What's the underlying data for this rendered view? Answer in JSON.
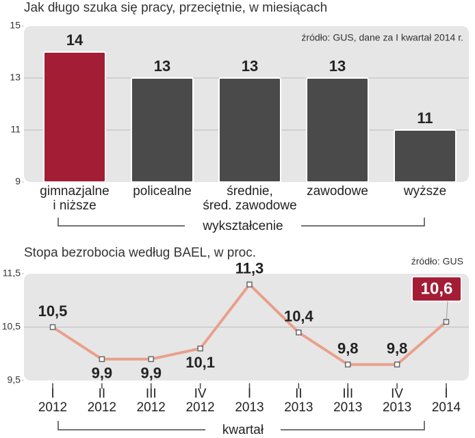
{
  "chart_data": [
    {
      "type": "bar",
      "title": "Jak długo szuka się pracy, przeciętnie, w miesiącach",
      "source": "źródło: GUS, dane za I kwartał 2014 r.",
      "categories": [
        [
          "gimnazjalne",
          "i niższe"
        ],
        [
          "policealne"
        ],
        [
          "średnie,",
          "śred. zawodowe"
        ],
        [
          "zawodowe"
        ],
        [
          "wyższe"
        ]
      ],
      "values": [
        14,
        13,
        13,
        13,
        11
      ],
      "colors": [
        "#a31d35",
        "#4a4a4a",
        "#4a4a4a",
        "#4a4a4a",
        "#4a4a4a"
      ],
      "xlabel": "wykształcenie",
      "ylim": [
        9,
        15
      ],
      "yticks": [
        9,
        11,
        13,
        15
      ],
      "grid": true
    },
    {
      "type": "line",
      "title": "Stopa bezrobocia według BAEL, w proc.",
      "source": "źródło: GUS",
      "categories": [
        [
          "I",
          "2012"
        ],
        [
          "II",
          "2012"
        ],
        [
          "III",
          "2012"
        ],
        [
          "IV",
          "2012"
        ],
        [
          "I",
          "2013"
        ],
        [
          "II",
          "2013"
        ],
        [
          "III",
          "2013"
        ],
        [
          "IV",
          "2013"
        ],
        [
          "I",
          "2014"
        ]
      ],
      "values": [
        10.5,
        9.9,
        9.9,
        10.1,
        11.3,
        10.4,
        9.8,
        9.8,
        10.6
      ],
      "value_labels": [
        "10,5",
        "9,9",
        "9,9",
        "10,1",
        "11,3",
        "10,4",
        "9,8",
        "9,8",
        "10,6"
      ],
      "color": "#e8a08a",
      "highlight_color": "#a31d35",
      "xlabel": "kwartał",
      "ylim": [
        9.5,
        11.5
      ],
      "yticks": [
        {
          "value": 9.5,
          "label": "9,5"
        },
        {
          "value": 10.5,
          "label": "10,5"
        },
        {
          "value": 11.5,
          "label": "11,5"
        }
      ],
      "grid": true
    }
  ]
}
